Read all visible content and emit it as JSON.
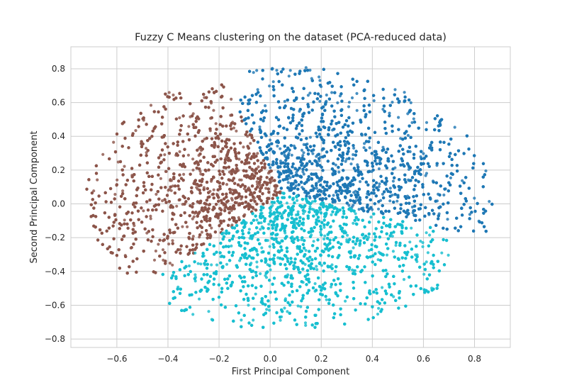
{
  "chart_data": {
    "type": "scatter",
    "title": "Fuzzy C Means clustering on the dataset (PCA-reduced data)",
    "xlabel": "First Principal Component",
    "ylabel": "Second Principal Component",
    "xlim": [
      -0.78,
      0.94
    ],
    "ylim": [
      -0.85,
      0.93
    ],
    "x_ticks": [
      -0.6,
      -0.4,
      -0.2,
      0.0,
      0.2,
      0.4,
      0.6,
      0.8
    ],
    "x_tick_labels": [
      "−0.6",
      "−0.4",
      "−0.2",
      "0.0",
      "0.2",
      "0.4",
      "0.6",
      "0.8"
    ],
    "y_ticks": [
      -0.8,
      -0.6,
      -0.4,
      -0.2,
      0.0,
      0.2,
      0.4,
      0.6,
      0.8
    ],
    "y_tick_labels": [
      "−0.8",
      "−0.6",
      "−0.4",
      "−0.2",
      "0.0",
      "0.2",
      "0.4",
      "0.6",
      "0.8"
    ],
    "grid": true,
    "legend": "none",
    "colors": {
      "cluster_brown": "#8c564b",
      "cluster_blue": "#1f77b4",
      "cluster_cyan": "#17becf",
      "grid": "#cccccc",
      "background": "#ffffff"
    },
    "clusters": [
      {
        "color": "#8c564b",
        "extent_x": [
          -0.73,
          0.06
        ],
        "extent_y": [
          -0.41,
          0.73
        ],
        "center": [
          -0.27,
          0.12
        ],
        "approx_points": 3800
      },
      {
        "color": "#1f77b4",
        "extent_x": [
          -0.12,
          0.87
        ],
        "extent_y": [
          -0.36,
          0.85
        ],
        "center": [
          0.3,
          0.3
        ],
        "approx_points": 5200
      },
      {
        "color": "#17becf",
        "extent_x": [
          -0.42,
          0.7
        ],
        "extent_y": [
          -0.77,
          0.07
        ],
        "center": [
          0.12,
          -0.33
        ],
        "approx_points": 4200
      }
    ]
  }
}
